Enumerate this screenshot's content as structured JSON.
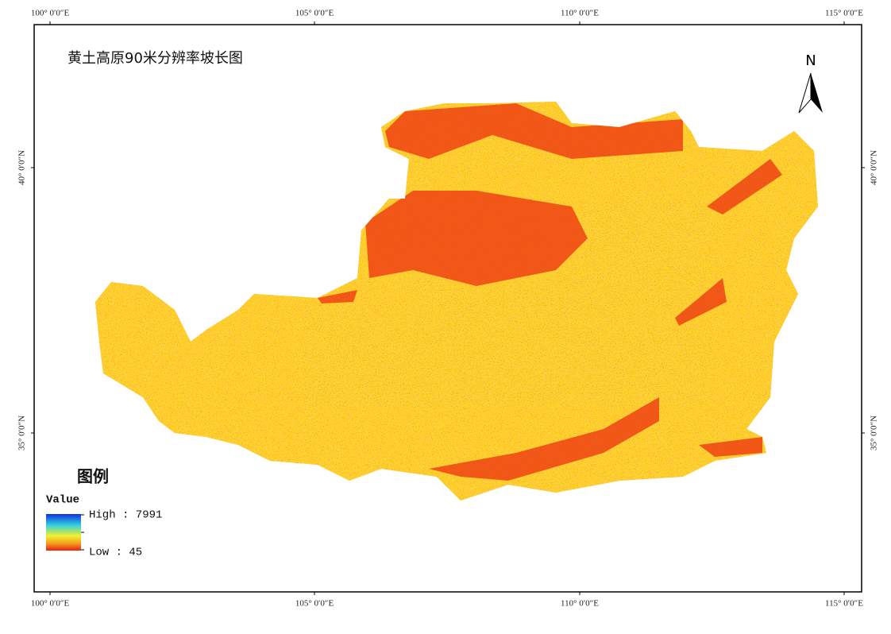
{
  "title": "黄土高原90米分辨率坡长图",
  "north_label": "N",
  "longitude_labels": [
    "100° 0′0″E",
    "105° 0′0″E",
    "110° 0′0″E",
    "115° 0′0″E"
  ],
  "latitude_labels": [
    "40° 0′0″N",
    "35° 0′0″N"
  ],
  "legend": {
    "title": "图例",
    "field": "Value",
    "high": "High : 7991",
    "low": "Low : 45"
  }
}
